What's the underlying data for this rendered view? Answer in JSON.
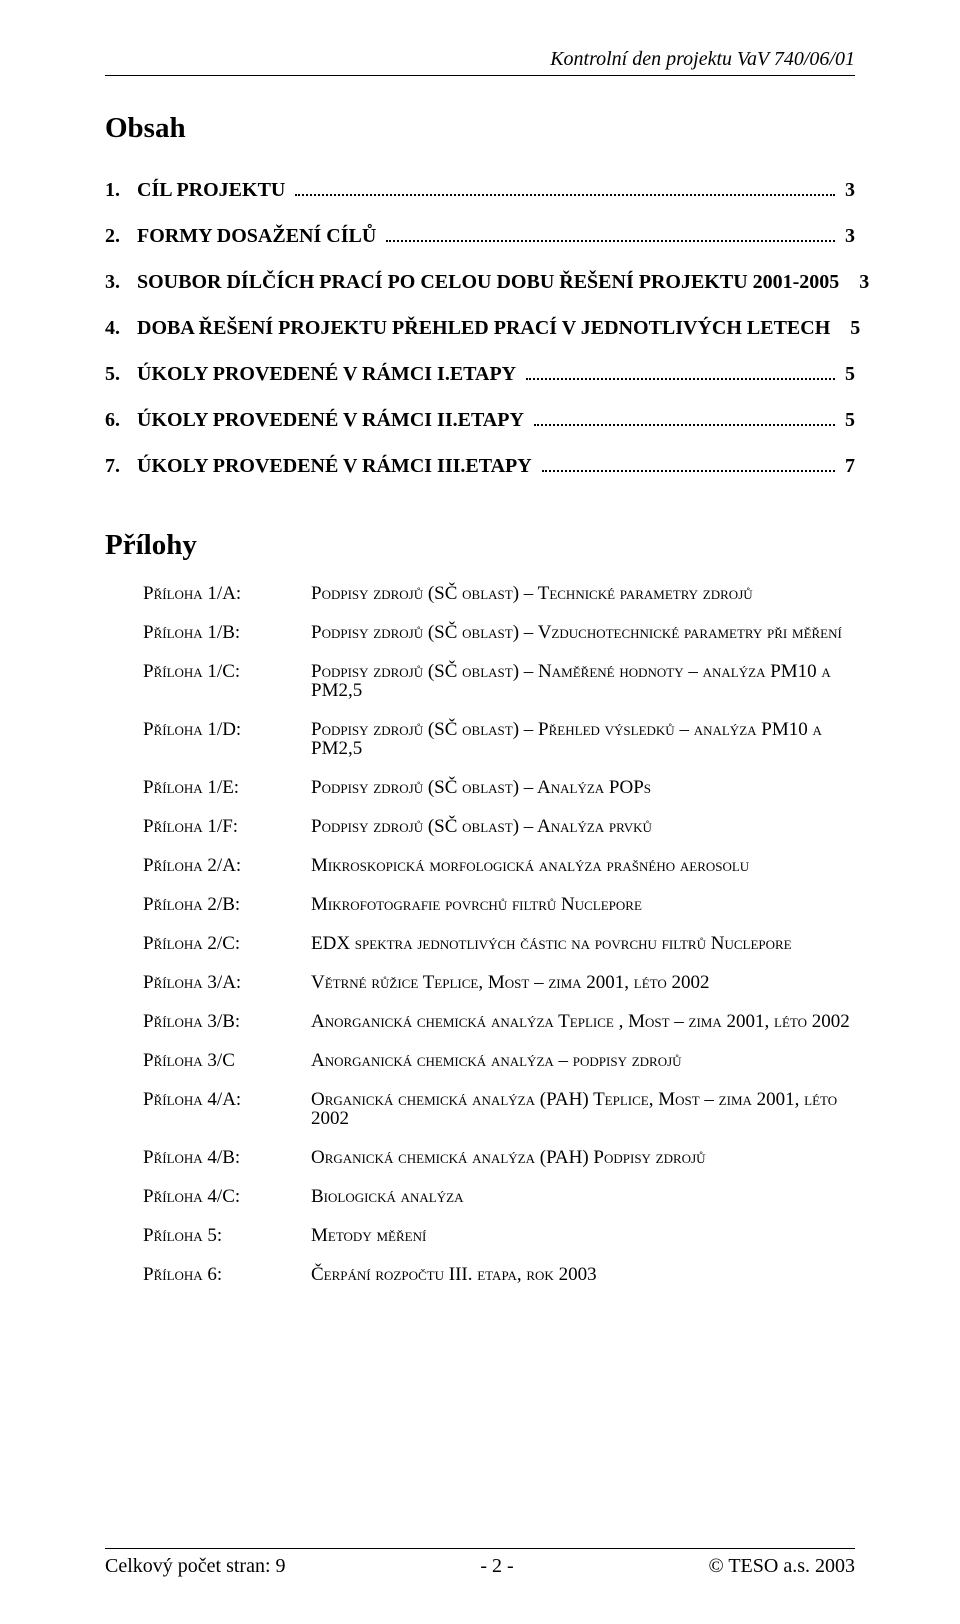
{
  "header": {
    "right": "Kontrolní den projektu VaV 740/06/01"
  },
  "title": "Obsah",
  "toc": [
    {
      "num": "1.",
      "label": "CÍL PROJEKTU",
      "page": "3"
    },
    {
      "num": "2.",
      "label": "FORMY DOSAŽENÍ CÍLŮ",
      "page": "3"
    },
    {
      "num": "3.",
      "label": "SOUBOR DÍLČÍCH PRACÍ PO CELOU DOBU ŘEŠENÍ PROJEKTU 2001-2005",
      "page": "3"
    },
    {
      "num": "4.",
      "label": "DOBA ŘEŠENÍ PROJEKTU PŘEHLED PRACÍ V JEDNOTLIVÝCH LETECH",
      "page": "5"
    },
    {
      "num": "5.",
      "label": "ÚKOLY PROVEDENÉ V RÁMCI I.ETAPY",
      "page": "5"
    },
    {
      "num": "6.",
      "label": "ÚKOLY PROVEDENÉ V RÁMCI II.ETAPY",
      "page": "5"
    },
    {
      "num": "7.",
      "label": "ÚKOLY PROVEDENÉ V RÁMCI III.ETAPY",
      "page": "7"
    }
  ],
  "subheading": "Přílohy",
  "appendix": [
    {
      "label": "Příloha 1/A:",
      "desc": "Podpisy zdrojů (SČ oblast) – Technické  parametry zdrojů"
    },
    {
      "label": "Příloha 1/B:",
      "desc": "Podpisy zdrojů (SČ oblast) – Vzduchotechnické parametry při měření"
    },
    {
      "label": "Příloha 1/C:",
      "desc": "Podpisy zdrojů (SČ oblast) – Naměřené hodnoty – analýza PM10 a PM2,5"
    },
    {
      "label": "Příloha 1/D:",
      "desc": "Podpisy zdrojů (SČ oblast) – Přehled výsledků – analýza PM10 a PM2,5"
    },
    {
      "label": "Příloha 1/E:",
      "desc": "Podpisy zdrojů (SČ oblast) – Analýza POPs"
    },
    {
      "label": "Příloha 1/F:",
      "desc": "Podpisy zdrojů (SČ oblast) – Analýza prvků"
    },
    {
      "label": "Příloha 2/A:",
      "desc": "Mikroskopická morfologická analýza prašného aerosolu"
    },
    {
      "label": "Příloha 2/B:",
      "desc": "Mikrofotografie povrchů filtrů Nuclepore"
    },
    {
      "label": "Příloha 2/C:",
      "desc": "EDX spektra jednotlivých částic na povrchu filtrů Nuclepore"
    },
    {
      "label": "Příloha 3/A:",
      "desc": "Větrné růžice Teplice, Most – zima 2001, léto 2002"
    },
    {
      "label": "Příloha 3/B:",
      "desc": "Anorganická chemická analýza Teplice , Most – zima 2001, léto 2002"
    },
    {
      "label": "Příloha 3/C",
      "desc": "Anorganická chemická analýza – podpisy zdrojů"
    },
    {
      "label": "Příloha 4/A:",
      "desc": "Organická chemická analýza (PAH) Teplice, Most – zima 2001, léto 2002"
    },
    {
      "label": "Příloha 4/B:",
      "desc": "Organická chemická analýza (PAH) Podpisy zdrojů"
    },
    {
      "label": "Příloha 4/C:",
      "desc": "Biologická analýza"
    },
    {
      "label": "Příloha 5:",
      "desc": "Metody měření"
    },
    {
      "label": "Příloha 6:",
      "desc": "Čerpání rozpočtu III. etapa, rok 2003"
    }
  ],
  "footer": {
    "left": "Celkový počet stran: 9",
    "center": "- 2 -",
    "right": "© TESO a.s. 2003"
  }
}
